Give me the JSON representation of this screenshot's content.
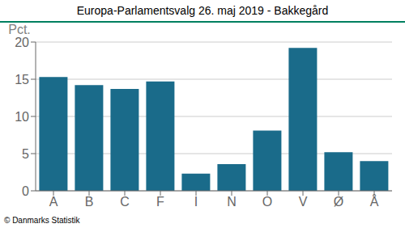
{
  "chart_data": {
    "type": "bar",
    "title": "Europa-Parlamentsvalg 26. maj 2019 - Bakkegård",
    "ylabel": "Pct.",
    "annotations": [
      "© Danmarks Statistik"
    ],
    "categories": [
      "A",
      "B",
      "C",
      "F",
      "I",
      "N",
      "O",
      "V",
      "Ø",
      "Å"
    ],
    "values": [
      15.3,
      14.2,
      13.7,
      14.7,
      2.3,
      3.6,
      8.1,
      19.2,
      5.2,
      4.0
    ],
    "color": "#1a6b8a",
    "ylim": [
      0,
      20
    ],
    "yticks": [
      0,
      5,
      10,
      15,
      20
    ],
    "grid": true
  }
}
